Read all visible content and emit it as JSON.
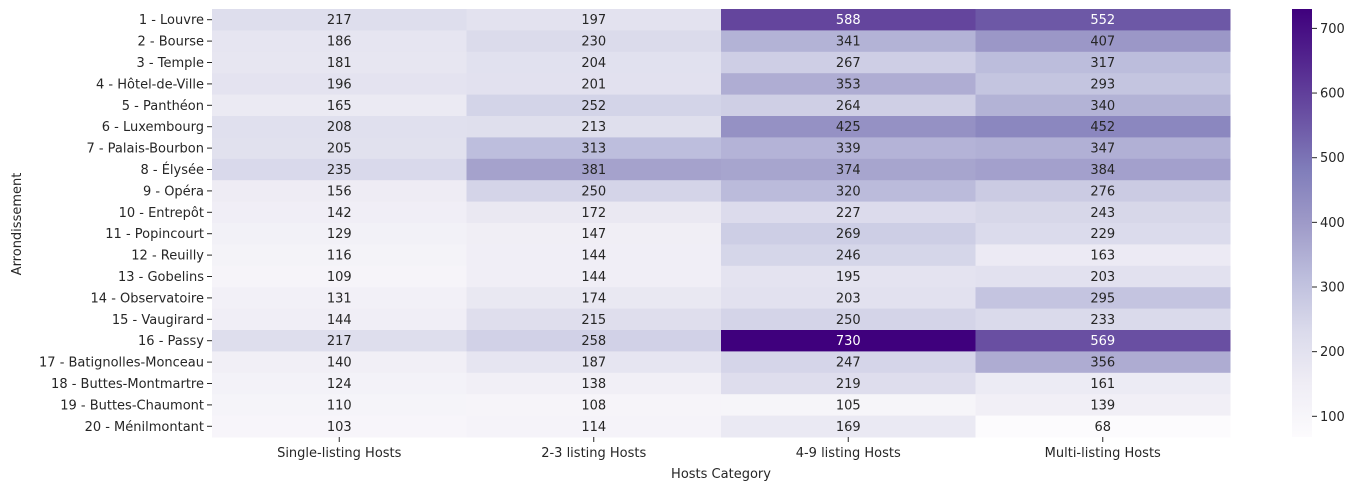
{
  "chart_data": {
    "type": "heatmap",
    "title": "",
    "xlabel": "Hosts Category",
    "ylabel": "Arrondissement",
    "columns": [
      "Single-listing Hosts",
      "2-3 listing Hosts",
      "4-9 listing Hosts",
      "Multi-listing Hosts"
    ],
    "rows": [
      "1 - Louvre",
      "2 - Bourse",
      "3 - Temple",
      "4 - Hôtel-de-Ville",
      "5 - Panthéon",
      "6 - Luxembourg",
      "7 - Palais-Bourbon",
      "8 - Élysée",
      "9 - Opéra",
      "10 - Entrepôt",
      "11 - Popincourt",
      "12 - Reuilly",
      "13 - Gobelins",
      "14 - Observatoire",
      "15 - Vaugirard",
      "16 - Passy",
      "17 - Batignolles-Monceau",
      "18 - Buttes-Montmartre",
      "19 - Buttes-Chaumont",
      "20 - Ménilmontant"
    ],
    "values": [
      [
        217,
        197,
        588,
        552
      ],
      [
        186,
        230,
        341,
        407
      ],
      [
        181,
        204,
        267,
        317
      ],
      [
        196,
        201,
        353,
        293
      ],
      [
        165,
        252,
        264,
        340
      ],
      [
        208,
        213,
        425,
        452
      ],
      [
        205,
        313,
        339,
        347
      ],
      [
        235,
        381,
        374,
        384
      ],
      [
        156,
        250,
        320,
        276
      ],
      [
        142,
        172,
        227,
        243
      ],
      [
        129,
        147,
        269,
        229
      ],
      [
        116,
        144,
        246,
        163
      ],
      [
        109,
        144,
        195,
        203
      ],
      [
        131,
        174,
        203,
        295
      ],
      [
        144,
        215,
        250,
        233
      ],
      [
        217,
        258,
        730,
        569
      ],
      [
        140,
        187,
        247,
        356
      ],
      [
        124,
        138,
        219,
        161
      ],
      [
        110,
        108,
        105,
        139
      ],
      [
        103,
        114,
        169,
        68
      ]
    ],
    "colormap": "Purples",
    "vmin": 68,
    "vmax": 730,
    "colorbar_ticks": [
      100,
      200,
      300,
      400,
      500,
      600,
      700
    ],
    "colors": [
      "#fcfbfd",
      "#efedf5",
      "#dadaeb",
      "#bcbddc",
      "#9e9ac8",
      "#807dba",
      "#6a51a3",
      "#54278f",
      "#3f007d"
    ]
  }
}
